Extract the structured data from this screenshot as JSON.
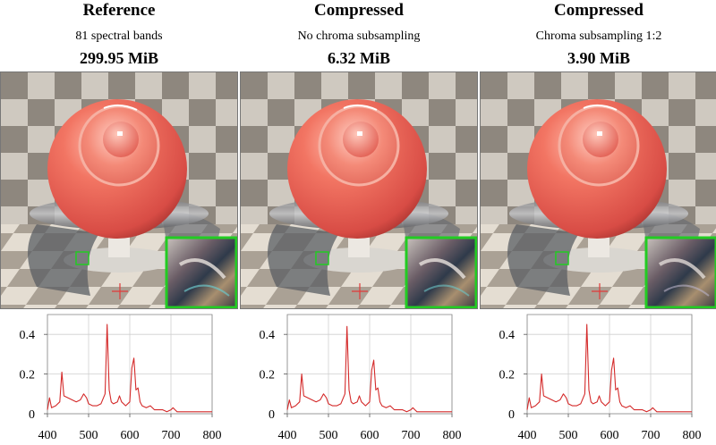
{
  "panels": [
    {
      "title": "Reference",
      "subtitle": "81 spectral bands",
      "size": "299.95 MiB"
    },
    {
      "title": "Compressed",
      "subtitle": "No chroma subsampling",
      "size": "6.32 MiB"
    },
    {
      "title": "Compressed",
      "subtitle": "Chroma subsampling 1:2",
      "size": "3.90 MiB"
    }
  ],
  "colors": {
    "sphere": "#e8625a",
    "spectrum": "#d42a2a",
    "inset_border": "#22cc22",
    "marker": "#e23b3b"
  },
  "chart_data": [
    {
      "type": "line",
      "panel": "Reference",
      "x": [
        400,
        405,
        410,
        420,
        430,
        435,
        440,
        450,
        460,
        470,
        480,
        488,
        495,
        500,
        510,
        520,
        530,
        540,
        545,
        550,
        555,
        560,
        570,
        575,
        580,
        590,
        600,
        605,
        610,
        612,
        615,
        620,
        625,
        630,
        640,
        650,
        660,
        670,
        680,
        690,
        700,
        705,
        710,
        715,
        720,
        740,
        760,
        780,
        800
      ],
      "y": [
        0.02,
        0.08,
        0.03,
        0.04,
        0.06,
        0.21,
        0.09,
        0.08,
        0.07,
        0.06,
        0.07,
        0.1,
        0.08,
        0.05,
        0.04,
        0.04,
        0.05,
        0.1,
        0.45,
        0.12,
        0.06,
        0.05,
        0.06,
        0.09,
        0.06,
        0.04,
        0.06,
        0.23,
        0.28,
        0.22,
        0.12,
        0.13,
        0.06,
        0.04,
        0.03,
        0.04,
        0.02,
        0.02,
        0.02,
        0.01,
        0.02,
        0.03,
        0.02,
        0.01,
        0.01,
        0.01,
        0.01,
        0.01,
        0.01
      ],
      "xlim": [
        400,
        800
      ],
      "ylim": [
        0,
        0.5
      ],
      "xticks": [
        "400",
        "500",
        "600",
        "700",
        "800"
      ],
      "yticks": [
        "0",
        "0.2",
        "0.4"
      ]
    },
    {
      "type": "line",
      "panel": "No chroma subsampling",
      "x": [
        400,
        405,
        410,
        420,
        430,
        435,
        440,
        450,
        460,
        470,
        480,
        488,
        495,
        500,
        510,
        520,
        530,
        540,
        545,
        550,
        555,
        560,
        570,
        575,
        580,
        590,
        600,
        605,
        610,
        612,
        615,
        620,
        625,
        630,
        640,
        650,
        660,
        670,
        680,
        690,
        700,
        705,
        710,
        715,
        720,
        740,
        760,
        780,
        800
      ],
      "y": [
        0.02,
        0.07,
        0.03,
        0.04,
        0.06,
        0.2,
        0.09,
        0.08,
        0.07,
        0.06,
        0.07,
        0.1,
        0.08,
        0.05,
        0.04,
        0.04,
        0.05,
        0.1,
        0.44,
        0.12,
        0.06,
        0.05,
        0.06,
        0.09,
        0.06,
        0.04,
        0.06,
        0.22,
        0.27,
        0.21,
        0.12,
        0.13,
        0.06,
        0.04,
        0.03,
        0.04,
        0.02,
        0.02,
        0.02,
        0.01,
        0.02,
        0.03,
        0.02,
        0.01,
        0.01,
        0.01,
        0.01,
        0.01,
        0.01
      ],
      "xlim": [
        400,
        800
      ],
      "ylim": [
        0,
        0.5
      ],
      "xticks": [
        "400",
        "500",
        "600",
        "700",
        "800"
      ],
      "yticks": [
        "0",
        "0.2",
        "0.4"
      ]
    },
    {
      "type": "line",
      "panel": "Chroma subsampling 1:2",
      "x": [
        400,
        405,
        410,
        420,
        430,
        435,
        440,
        450,
        460,
        470,
        480,
        488,
        495,
        500,
        510,
        520,
        530,
        540,
        545,
        550,
        555,
        560,
        570,
        575,
        580,
        590,
        600,
        605,
        610,
        612,
        615,
        620,
        625,
        630,
        640,
        650,
        660,
        670,
        680,
        690,
        700,
        705,
        710,
        715,
        720,
        740,
        760,
        780,
        800
      ],
      "y": [
        0.02,
        0.08,
        0.03,
        0.04,
        0.06,
        0.2,
        0.09,
        0.08,
        0.07,
        0.06,
        0.07,
        0.1,
        0.08,
        0.05,
        0.04,
        0.04,
        0.05,
        0.1,
        0.45,
        0.12,
        0.06,
        0.05,
        0.06,
        0.09,
        0.06,
        0.04,
        0.06,
        0.22,
        0.28,
        0.22,
        0.12,
        0.13,
        0.06,
        0.04,
        0.03,
        0.04,
        0.02,
        0.02,
        0.02,
        0.01,
        0.02,
        0.03,
        0.02,
        0.01,
        0.01,
        0.01,
        0.01,
        0.01,
        0.01
      ],
      "xlim": [
        400,
        800
      ],
      "ylim": [
        0,
        0.5
      ],
      "xticks": [
        "400",
        "500",
        "600",
        "700",
        "800"
      ],
      "yticks": [
        "0",
        "0.2",
        "0.4"
      ]
    }
  ]
}
